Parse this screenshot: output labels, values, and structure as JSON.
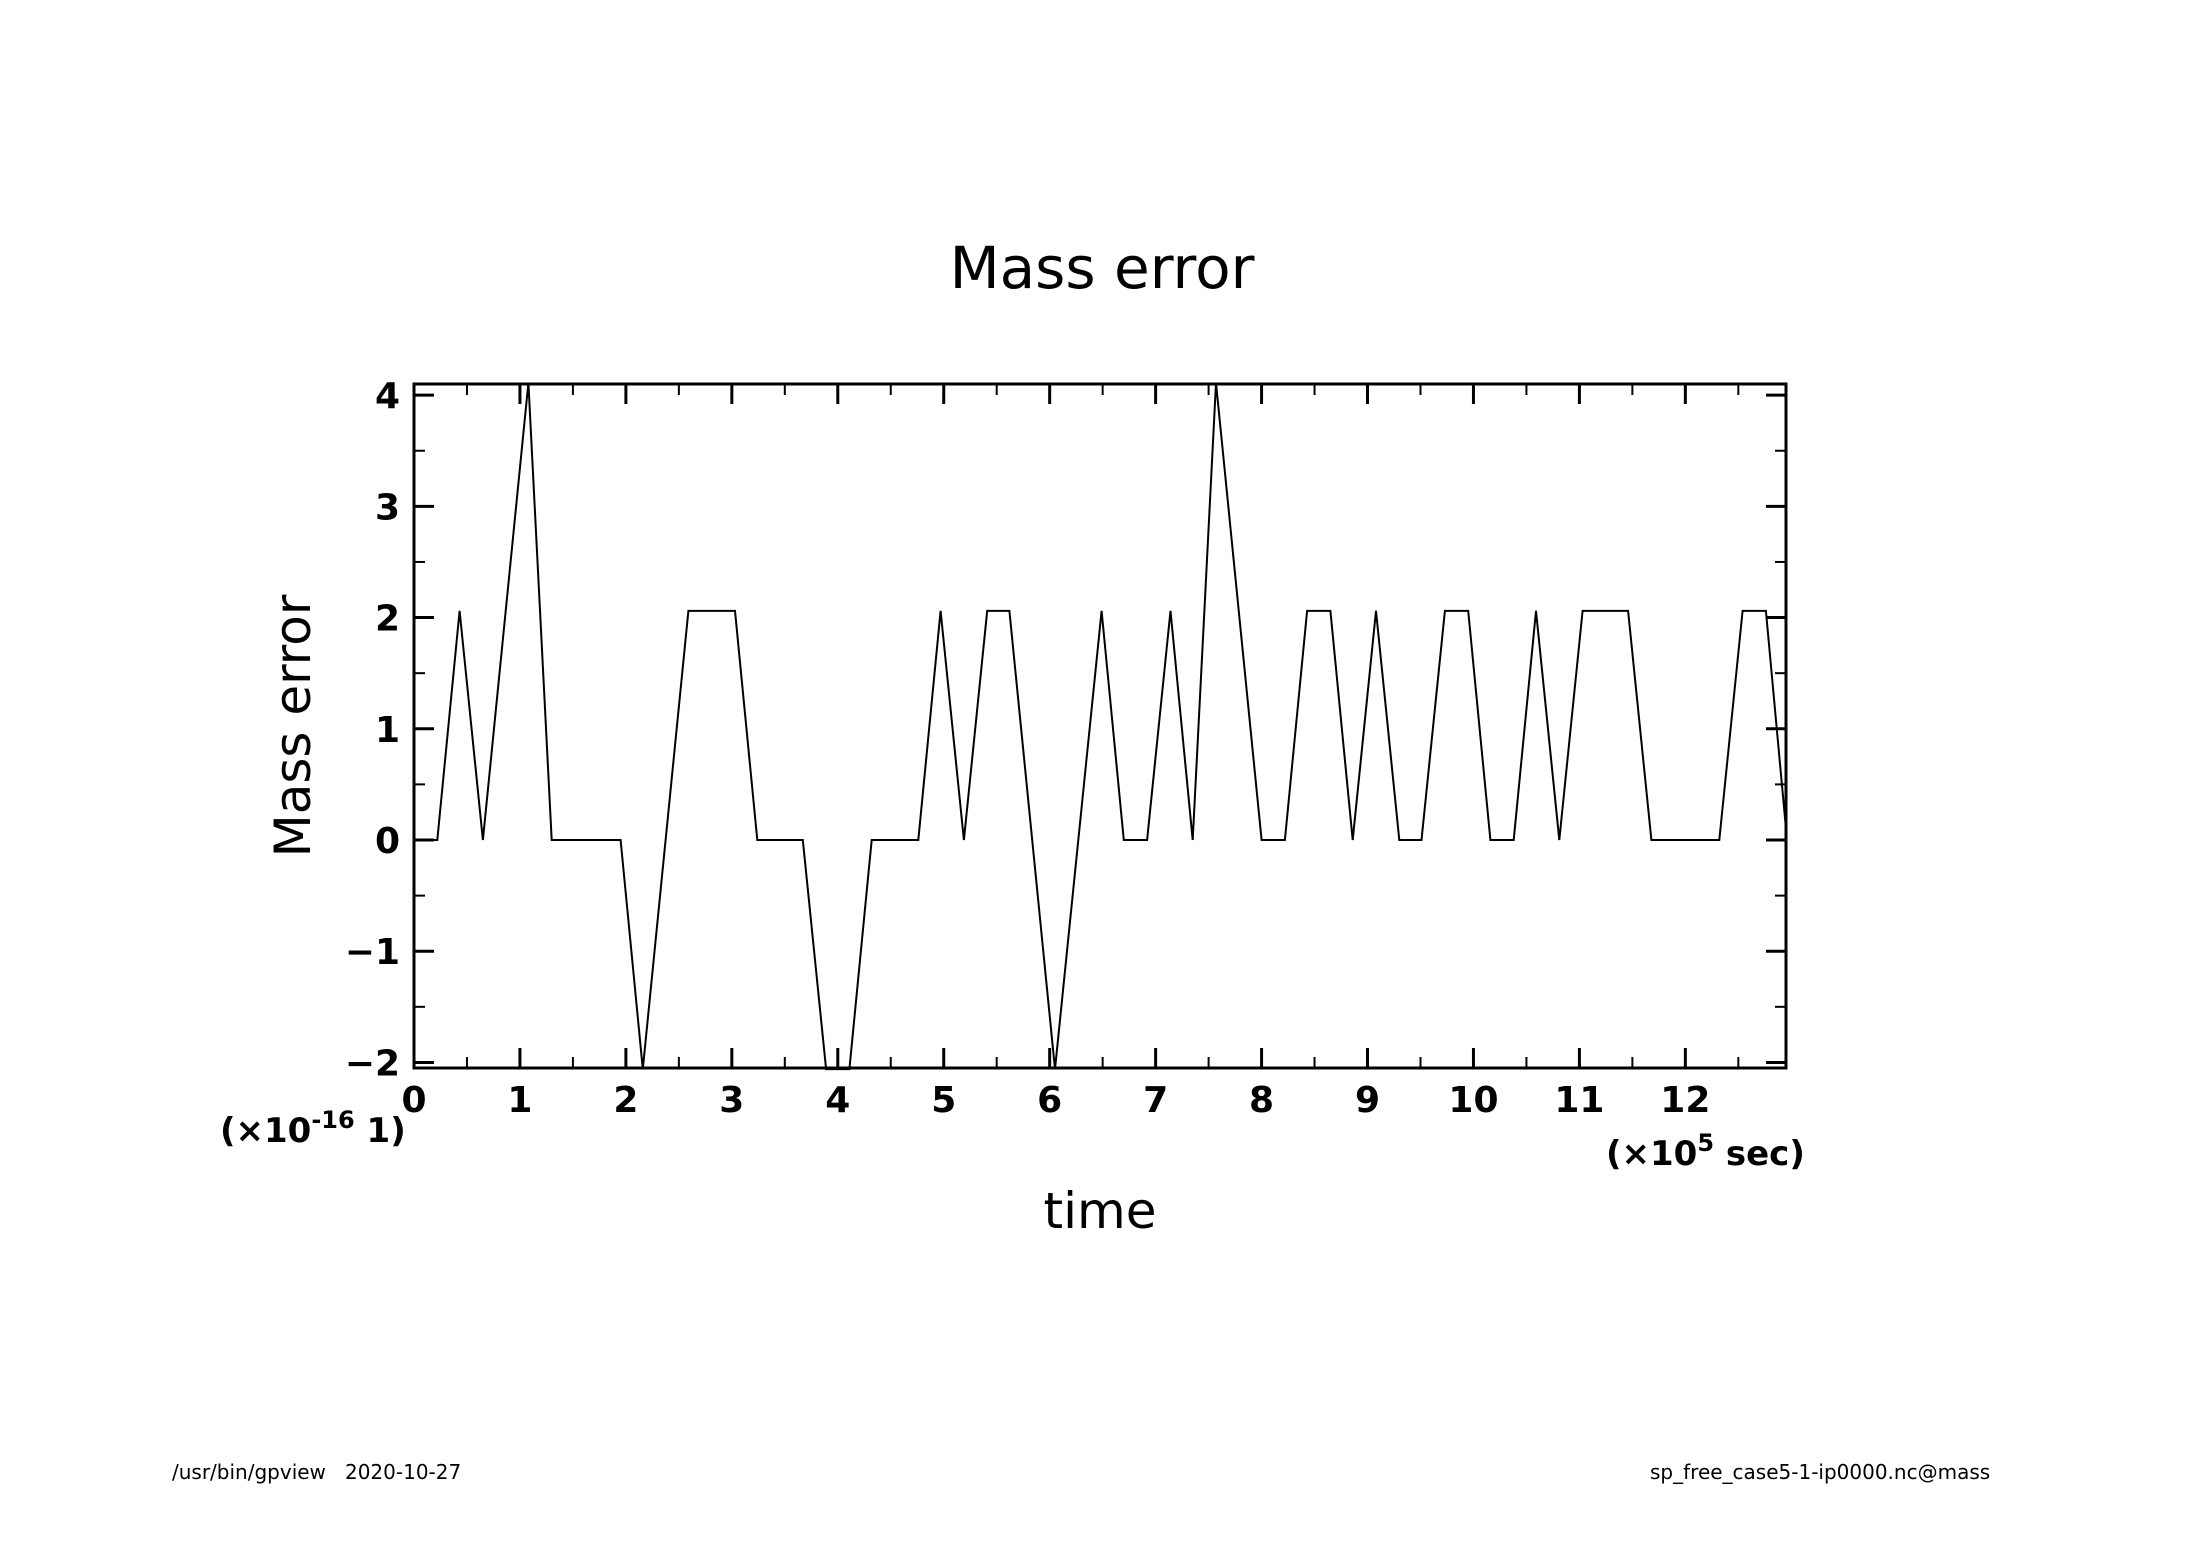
{
  "footer": {
    "left_program": "/usr/bin/gpview",
    "left_date": "2020-10-27",
    "right": "sp_free_case5-1-ip0000.nc@mass"
  },
  "chart_data": {
    "type": "line",
    "title": "Mass error",
    "xlabel": "time",
    "ylabel": "Mass error",
    "x_scale_label": {
      "prefix": "(×10",
      "exponent": "5",
      "suffix": " sec)"
    },
    "y_scale_label": {
      "prefix": "(×10",
      "exponent": "-16",
      "suffix": " 1)"
    },
    "xlim": [
      0,
      12.95
    ],
    "ylim": [
      -2.05,
      4.1
    ],
    "x_ticks": [
      "0",
      "1",
      "2",
      "3",
      "4",
      "5",
      "6",
      "7",
      "8",
      "9",
      "10",
      "11",
      "12"
    ],
    "y_ticks": [
      "4",
      "3",
      "2",
      "1",
      "0",
      "-1",
      "-2"
    ],
    "grid": false,
    "series": [
      {
        "x": [
          0,
          0.22,
          0.43,
          0.65,
          1.08,
          1.3,
          1.95,
          2.16,
          2.59,
          3.03,
          3.24,
          3.67,
          3.89,
          4.11,
          4.32,
          4.76,
          4.97,
          5.19,
          5.41,
          5.62,
          6.05,
          6.49,
          6.7,
          6.92,
          7.14,
          7.35,
          7.57,
          8.0,
          8.22,
          8.43,
          8.65,
          8.86,
          9.08,
          9.3,
          9.51,
          9.73,
          9.95,
          10.16,
          10.38,
          10.59,
          10.81,
          11.03,
          11.46,
          11.68,
          12.32,
          12.54,
          12.76,
          12.95
        ],
        "y": [
          0,
          0,
          2.06,
          0,
          4.11,
          0,
          0,
          -2.06,
          2.06,
          2.06,
          0,
          0,
          -2.06,
          -2.06,
          0,
          0,
          2.06,
          0,
          2.06,
          2.06,
          -2.06,
          2.06,
          0,
          0,
          2.06,
          0,
          4.11,
          0,
          0,
          2.06,
          2.06,
          0,
          2.06,
          0,
          0,
          2.06,
          2.06,
          0,
          0,
          2.06,
          0,
          2.06,
          2.06,
          0,
          0,
          2.06,
          2.06,
          0.1
        ]
      }
    ]
  }
}
